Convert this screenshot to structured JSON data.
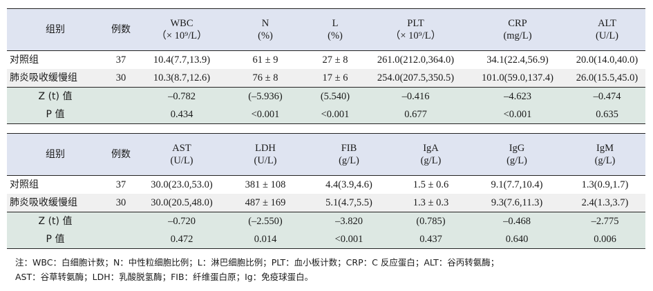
{
  "table1": {
    "headers": [
      {
        "l1": "组别",
        "l2": ""
      },
      {
        "l1": "例数",
        "l2": ""
      },
      {
        "l1": "WBC",
        "l2": "（× 10⁹/L）"
      },
      {
        "l1": "N",
        "l2": "(%)"
      },
      {
        "l1": "L",
        "l2": "(%)"
      },
      {
        "l1": "PLT",
        "l2": "（× 10⁹/L）"
      },
      {
        "l1": "CRP",
        "l2": "(mg/L)"
      },
      {
        "l1": "ALT",
        "l2": "(U/L)"
      }
    ],
    "rows": [
      [
        "对照组",
        "37",
        "10.4(7.7,13.9)",
        "61 ± 9",
        "27 ± 8",
        "261.0(212.0,364.0)",
        "34.1(22.4,56.9)",
        "20.0(14.0,40.0)"
      ],
      [
        "肺炎吸收缓慢组",
        "30",
        "10.3(8.7,12.6)",
        "76 ± 8",
        "17 ± 6",
        "254.0(207.5,350.5)",
        "101.0(59.0,137.4)",
        "26.0(15.5,45.0)"
      ],
      [
        "Z (t) 值",
        "",
        "–0.782",
        "(–5.936)",
        "(5.540)",
        "–0.416",
        "–4.623",
        "–0.474"
      ],
      [
        "P 值",
        "",
        "0.434",
        "<0.001",
        "<0.001",
        "0.677",
        "<0.001",
        "0.635"
      ]
    ]
  },
  "table2": {
    "headers": [
      {
        "l1": "组别",
        "l2": ""
      },
      {
        "l1": "例数",
        "l2": ""
      },
      {
        "l1": "AST",
        "l2": "(U/L)"
      },
      {
        "l1": "LDH",
        "l2": "(U/L)"
      },
      {
        "l1": "FIB",
        "l2": "(g/L)"
      },
      {
        "l1": "IgA",
        "l2": "(g/L)"
      },
      {
        "l1": "IgG",
        "l2": "(g/L)"
      },
      {
        "l1": "IgM",
        "l2": "(g/L)"
      }
    ],
    "rows": [
      [
        "对照组",
        "37",
        "30.0(23.0,53.0)",
        "381 ± 108",
        "4.4(3.9,4.6)",
        "1.5 ± 0.6",
        "9.1(7.7,10.4)",
        "1.3(0.9,1.7)"
      ],
      [
        "肺炎吸收缓慢组",
        "30",
        "30.0(20.5,48.0)",
        "487 ± 169",
        "5.1(4.7,5.5)",
        "1.3 ± 0.3",
        "9.3(7.6,11.3)",
        "2.4(1.3,3.7)"
      ],
      [
        "Z (t) 值",
        "",
        "–0.720",
        "(–2.550)",
        "–3.820",
        "(0.785)",
        "–0.468",
        "–2.775"
      ],
      [
        "P 值",
        "",
        "0.472",
        "0.014",
        "<0.001",
        "0.437",
        "0.640",
        "0.006"
      ]
    ]
  },
  "note": {
    "line1": "注：WBC：白细胞计数；N：中性粒细胞比例；L：淋巴细胞比例；PLT：血小板计数；CRP：C 反应蛋白；ALT：谷丙转氨酶；",
    "line2": "AST：谷草转氨酶；LDH：乳酸脱氢酶；FIB：纤维蛋白原；Ig：免疫球蛋白。"
  }
}
